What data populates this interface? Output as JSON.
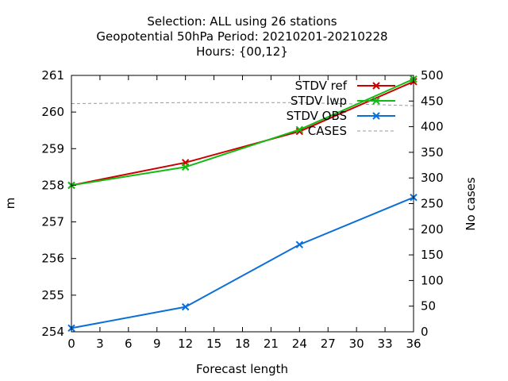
{
  "chart_data": {
    "type": "line",
    "title_lines": [
      "Selection: ALL using    26 stations",
      "Geopotential 50hPa   Period: 20210201-20210228",
      "Hours: {00,12}"
    ],
    "xlabel": "Forecast length",
    "ylabel": "m",
    "y2label": "No cases",
    "xlim": [
      0,
      36
    ],
    "ylim": [
      254,
      261
    ],
    "y2lim": [
      0,
      500
    ],
    "xticks": [
      0,
      3,
      6,
      9,
      12,
      15,
      18,
      21,
      24,
      27,
      30,
      33,
      36
    ],
    "yticks": [
      254,
      255,
      256,
      257,
      258,
      259,
      260,
      261
    ],
    "y2ticks": [
      0,
      50,
      100,
      150,
      200,
      250,
      300,
      350,
      400,
      450,
      500
    ],
    "legend_position": "top-right",
    "series": [
      {
        "name": "STDV ref",
        "axis": "y",
        "color": "#cc0000",
        "marker": "x",
        "dashed": false,
        "x": [
          0,
          12,
          24,
          36
        ],
        "y": [
          258.0,
          258.62,
          259.47,
          260.83
        ]
      },
      {
        "name": "STDV lwp",
        "axis": "y",
        "color": "#11bb11",
        "marker": "x",
        "dashed": false,
        "x": [
          0,
          12,
          24,
          36
        ],
        "y": [
          258.0,
          258.5,
          259.52,
          260.9
        ]
      },
      {
        "name": "STDV OBS",
        "axis": "y",
        "color": "#0b6fd8",
        "marker": "x",
        "dashed": false,
        "x": [
          0,
          12,
          24,
          36
        ],
        "y": [
          254.1,
          254.68,
          256.38,
          257.67
        ]
      },
      {
        "name": "CASES",
        "axis": "y2",
        "color": "#999999",
        "marker": "none",
        "dashed": true,
        "x": [
          0,
          12,
          24,
          36
        ],
        "y": [
          445,
          447,
          447,
          441
        ]
      }
    ]
  }
}
